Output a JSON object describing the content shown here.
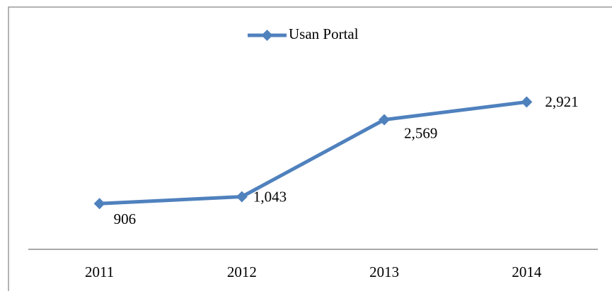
{
  "chart_data": {
    "type": "line",
    "categories": [
      "2011",
      "2012",
      "2013",
      "2014"
    ],
    "series": [
      {
        "name": "Usan Portal",
        "color": "#4f81bd",
        "values": [
          906,
          1043,
          2569,
          2921
        ],
        "value_labels": [
          "906",
          "1,043",
          "2,569",
          "2,921"
        ]
      }
    ],
    "ylim": [
      0,
      3500
    ],
    "legend": "top"
  }
}
